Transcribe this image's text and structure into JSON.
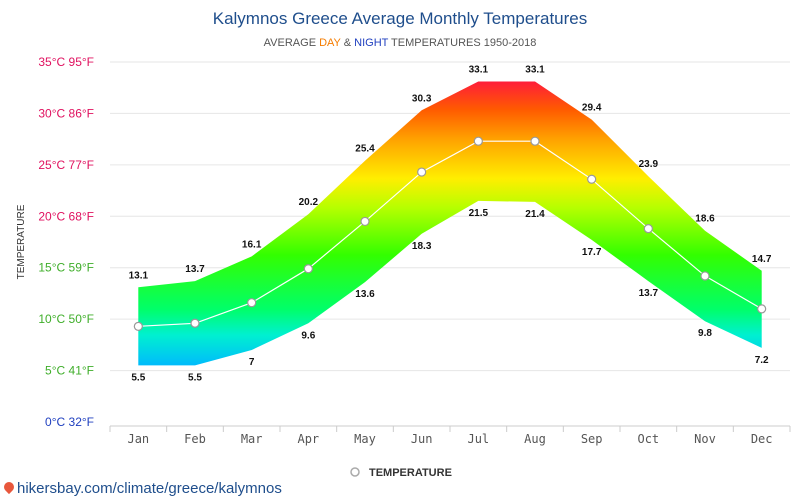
{
  "title": "Kalymnos Greece Average Monthly Temperatures",
  "subtitle": {
    "prefix": "AVERAGE ",
    "day": "DAY",
    "amp": " & ",
    "night": "NIGHT",
    "suffix": " TEMPERATURES 1950-2018"
  },
  "legend": {
    "label": "TEMPERATURE"
  },
  "source": "hikersbay.com/climate/greece/kalymnos",
  "colors": {
    "title": "#1f4e8c",
    "day": "#f57c00",
    "night": "#1f3fbf",
    "average_line": "#ffffff",
    "gridline": "#e6e6e6"
  },
  "chart_data": {
    "type": "area",
    "categories": [
      "Jan",
      "Feb",
      "Mar",
      "Apr",
      "May",
      "Jun",
      "Jul",
      "Aug",
      "Sep",
      "Oct",
      "Nov",
      "Dec"
    ],
    "ylabel": "TEMPERATURE",
    "ylim": [
      0,
      35
    ],
    "y_ticks": [
      {
        "value": 35,
        "label": "35°C 95°F",
        "color": "#e0115f"
      },
      {
        "value": 30,
        "label": "30°C 86°F",
        "color": "#e0115f"
      },
      {
        "value": 25,
        "label": "25°C 77°F",
        "color": "#e0115f"
      },
      {
        "value": 20,
        "label": "20°C 68°F",
        "color": "#e0115f"
      },
      {
        "value": 15,
        "label": "15°C 59°F",
        "color": "#3fae2a"
      },
      {
        "value": 10,
        "label": "10°C 50°F",
        "color": "#3fae2a"
      },
      {
        "value": 5,
        "label": "5°C 41°F",
        "color": "#3fae2a"
      },
      {
        "value": 0,
        "label": "0°C 32°F",
        "color": "#1f3fbf"
      }
    ],
    "grid": true,
    "legend_position": "bottom-center",
    "day_labels": [
      "13.1",
      "13.7",
      "16.1",
      "20.2",
      "25.4",
      "30.3",
      "33.1",
      "33.1",
      "29.4",
      "23.9",
      "18.6",
      "14.7"
    ],
    "night_labels": [
      "5.5",
      "5.5",
      "7",
      "9.6",
      "13.6",
      "18.3",
      "21.5",
      "21.4",
      "17.7",
      "13.7",
      "9.8",
      "7.2"
    ],
    "series": [
      {
        "kind": "day",
        "values": [
          13.1,
          13.7,
          16.1,
          20.2,
          25.4,
          30.3,
          33.1,
          33.1,
          29.4,
          23.9,
          18.6,
          14.7
        ]
      },
      {
        "kind": "night",
        "values": [
          5.5,
          5.5,
          7,
          9.6,
          13.6,
          18.3,
          21.5,
          21.4,
          17.7,
          13.7,
          9.8,
          7.2
        ]
      },
      {
        "name": "TEMPERATURE",
        "kind": "average",
        "values": [
          9.3,
          9.6,
          11.6,
          14.9,
          19.5,
          24.3,
          27.3,
          27.3,
          23.6,
          18.8,
          14.2,
          11.0
        ]
      }
    ]
  }
}
